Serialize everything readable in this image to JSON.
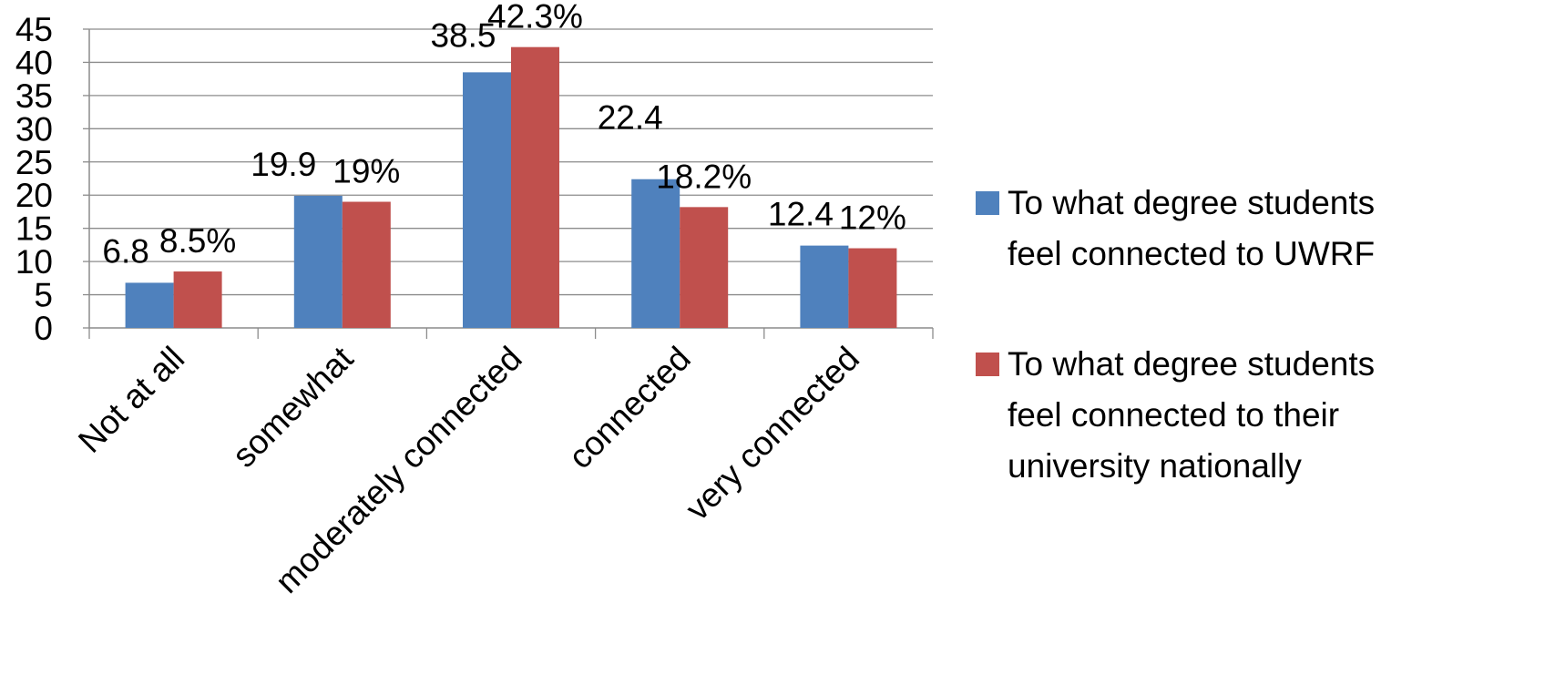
{
  "chart_data": {
    "type": "bar",
    "title": "",
    "xlabel": "",
    "ylabel": "",
    "ylim": [
      0,
      45
    ],
    "yticks": [
      0,
      5,
      10,
      15,
      20,
      25,
      30,
      35,
      40,
      45
    ],
    "grid": true,
    "legend_position": "right",
    "categories": [
      "Not at all",
      "somewhat",
      "moderately connected",
      "connected",
      "very connected"
    ],
    "series": [
      {
        "name": "To what degree students feel connected to UWRF",
        "legend_lines": [
          "To what degree students",
          "feel connected to UWRF"
        ],
        "color": "#4F81BD",
        "values": [
          6.8,
          19.9,
          38.5,
          22.4,
          12.4
        ],
        "labels": [
          "6.8",
          "19.9",
          "38.5",
          "22.4",
          "12.4"
        ]
      },
      {
        "name": "To what degree students feel connected to their university nationally",
        "legend_lines": [
          "To what degree students",
          "feel connected to their",
          "university nationally"
        ],
        "color": "#C0504D",
        "values": [
          8.5,
          19,
          42.3,
          18.2,
          12
        ],
        "labels": [
          "8.5%",
          "19%",
          "42.3%",
          "18.2%",
          "12%"
        ]
      }
    ]
  }
}
